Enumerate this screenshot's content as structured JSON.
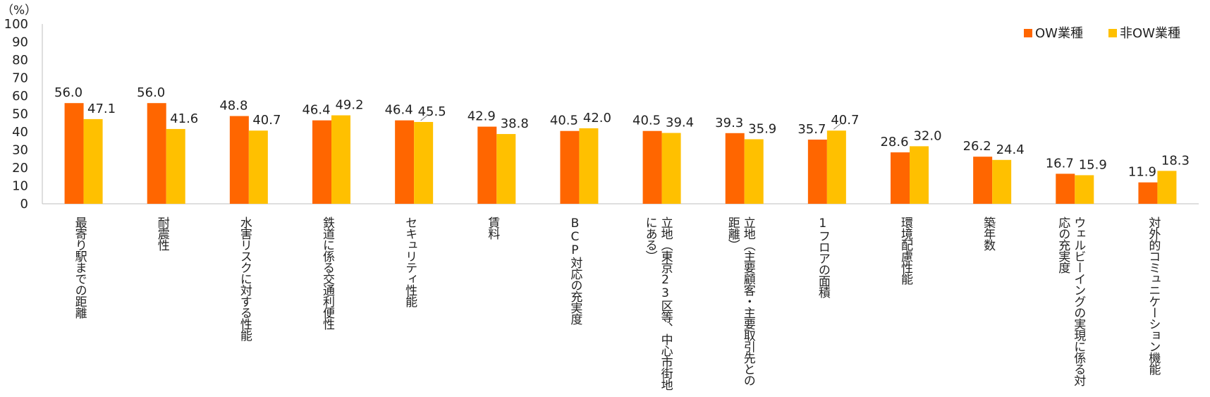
{
  "chart_data": {
    "type": "bar",
    "unit_label": "（%）",
    "ylim": [
      0,
      100
    ],
    "yticks": [
      "0",
      "10",
      "20",
      "30",
      "40",
      "50",
      "60",
      "70",
      "80",
      "90",
      "100"
    ],
    "grid": false,
    "legend_position": "top-right",
    "categories": [
      "最寄り駅までの距離",
      "耐震性",
      "水害リスクに対する性能",
      "鉄道に係る交通利便性",
      "セキュリティ性能",
      "賃料",
      "BCP対応の充実度",
      "立地（東京23区等、中心市街地にある）",
      "立地（主要顧客・主要取引先との距離）",
      "1フロアの面積",
      "環境配慮性能",
      "築年数",
      "ウェルビーイングの実現に係る対応の充実度",
      "対外的コミュニケーション機能"
    ],
    "category_lines": [
      [
        "最寄り駅までの距離"
      ],
      [
        "耐震性"
      ],
      [
        "水害リスクに対する性能"
      ],
      [
        "鉄道に係る交通利便性"
      ],
      [
        "セキュリティ性能"
      ],
      [
        "賃料"
      ],
      [
        "BCP対応の充実度"
      ],
      [
        "立地（東京23区等、中心市街地",
        "にある）"
      ],
      [
        "立地（主要顧客・主要取引先との",
        "距離）"
      ],
      [
        "1フロアの面積"
      ],
      [
        "環境配慮性能"
      ],
      [
        "築年数"
      ],
      [
        "ウェルビーイングの実現に係る対",
        "応の充実度"
      ],
      [
        "対外的コミュニケーション機能"
      ]
    ],
    "series": [
      {
        "name": "OW業種",
        "color": "#FF6600",
        "values": [
          56.0,
          56.0,
          48.8,
          46.4,
          46.4,
          42.9,
          40.5,
          40.5,
          39.3,
          35.7,
          28.6,
          26.2,
          16.7,
          11.9
        ],
        "labels": [
          "56.0",
          "56.0",
          "48.8",
          "46.4",
          "46.4",
          "42.9",
          "40.5",
          "40.5",
          "39.3",
          "35.7",
          "28.6",
          "26.2",
          "16.7",
          "11.9"
        ]
      },
      {
        "name": "非OW業種",
        "color": "#FFC000",
        "values": [
          47.1,
          41.6,
          40.7,
          49.2,
          45.5,
          38.8,
          42.0,
          39.4,
          35.9,
          40.7,
          32.0,
          24.4,
          15.9,
          18.3
        ],
        "labels": [
          "47.1",
          "41.6",
          "40.7",
          "49.2",
          "45.5",
          "38.8",
          "42.0",
          "39.4",
          "35.9",
          "40.7",
          "32.0",
          "24.4",
          "15.9",
          "18.3"
        ]
      }
    ]
  }
}
